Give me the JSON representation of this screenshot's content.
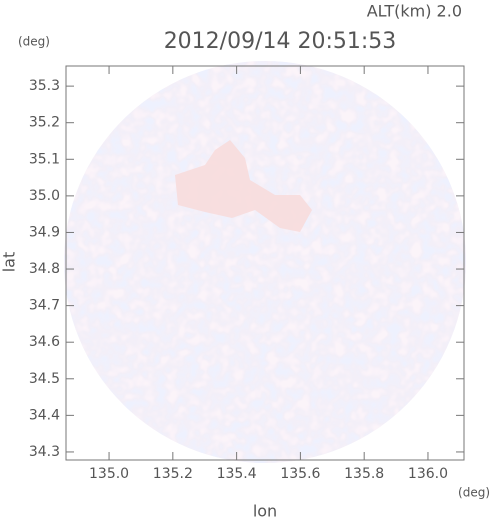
{
  "chart_data": {
    "type": "field",
    "title": "ALT(km) 2.0",
    "subtitle": "2012/09/14 20:51:53",
    "x_label": "lon",
    "y_label": "lat",
    "x_unit": "(deg)",
    "y_unit": "(deg)",
    "xlim": [
      134.865,
      136.113
    ],
    "ylim": [
      34.278,
      35.355
    ],
    "xticks": [
      {
        "value": 135.0,
        "label": "135.0"
      },
      135.2,
      135.4,
      135.6,
      135.8,
      {
        "value": 136.0,
        "label": "136.0"
      }
    ],
    "yticks": [
      34.3,
      34.4,
      34.5,
      34.6,
      34.7,
      34.8,
      34.9,
      {
        "value": 35.0,
        "label": "35.0"
      },
      35.1,
      35.2,
      35.3
    ]
  }
}
